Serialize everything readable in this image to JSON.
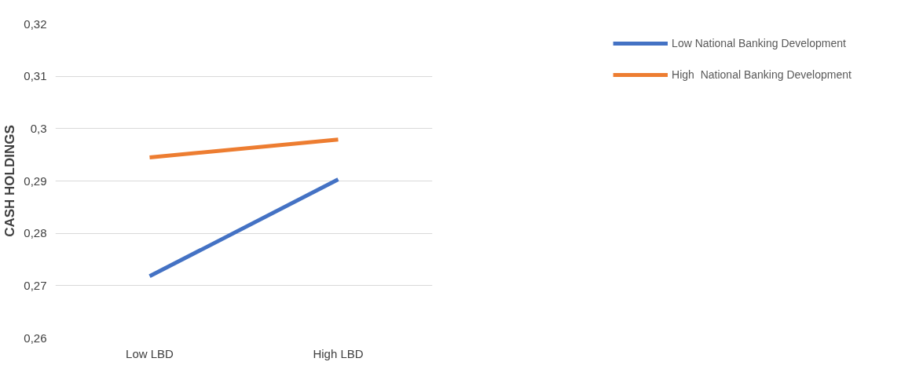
{
  "chart_data": {
    "type": "line",
    "ylabel": "CASH HOLDINGS",
    "categories": [
      "Low LBD",
      "High LBD"
    ],
    "series": [
      {
        "name": "Low National Banking Development",
        "color": "#4472c4",
        "values": [
          0.2718,
          0.2903
        ]
      },
      {
        "name": "High  National Banking Development",
        "color": "#ed7d31",
        "values": [
          0.2945,
          0.2979
        ]
      }
    ],
    "ylim": [
      0.26,
      0.32
    ],
    "yticks": [
      {
        "value": 0.26,
        "label": "0,26"
      },
      {
        "value": 0.27,
        "label": "0,27"
      },
      {
        "value": 0.28,
        "label": "0,28"
      },
      {
        "value": 0.29,
        "label": "0,29"
      },
      {
        "value": 0.3,
        "label": "0,3"
      },
      {
        "value": 0.31,
        "label": "0,31"
      },
      {
        "value": 0.32,
        "label": "0,32"
      }
    ],
    "grid": "y",
    "legend": "top right",
    "marker": "none",
    "line_style": "solid"
  }
}
